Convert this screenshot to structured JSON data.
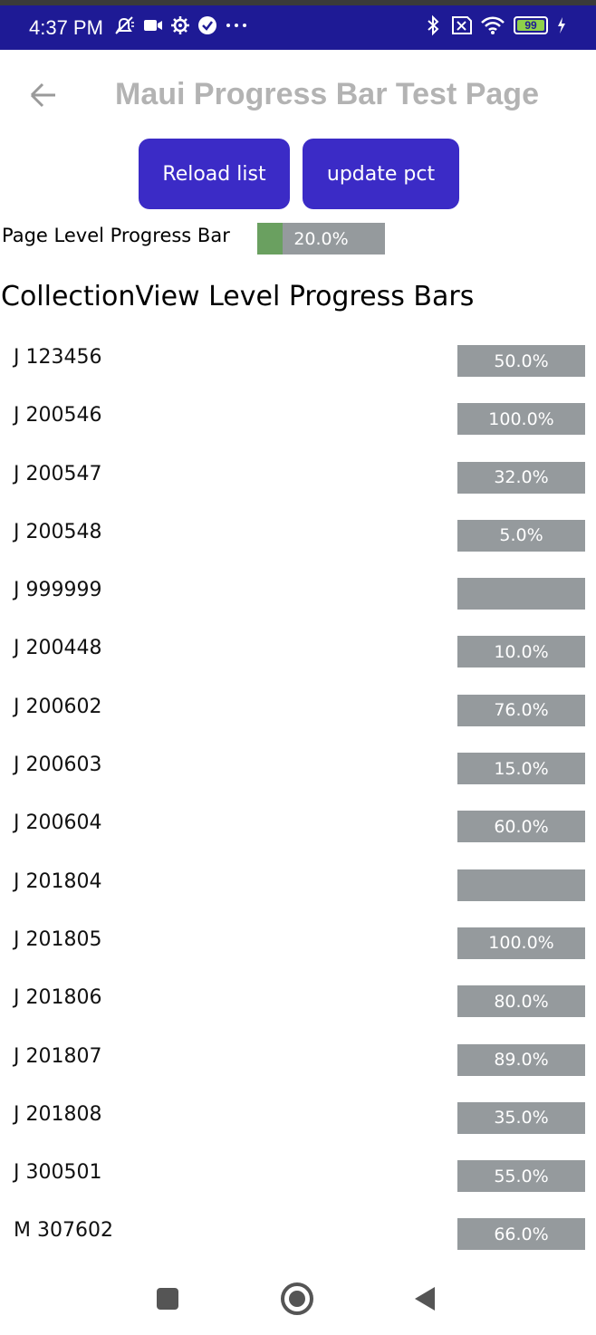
{
  "status_bar": {
    "time": "4:37 PM",
    "battery": "99",
    "icons_left": [
      "muted-notification-icon",
      "video-camera-icon",
      "settings-gear-icon",
      "check-circle-icon",
      "more-dots-icon"
    ],
    "icons_right": [
      "bluetooth-icon",
      "no-sim-icon",
      "wifi-icon",
      "battery-icon",
      "charging-bolt-icon"
    ]
  },
  "app_bar": {
    "title": "Maui Progress Bar Test Page"
  },
  "buttons": {
    "reload_label": "Reload list",
    "update_label": "update pct"
  },
  "page_progress": {
    "label": "Page Level Progress Bar",
    "value": 0.2,
    "text": "20.0%"
  },
  "section": {
    "title": "CollectionView Level Progress Bars"
  },
  "items": [
    {
      "label": "J 123456",
      "text": "50.0%"
    },
    {
      "label": "J 200546",
      "text": "100.0%"
    },
    {
      "label": "J 200547",
      "text": "32.0%"
    },
    {
      "label": "J 200548",
      "text": "5.0%"
    },
    {
      "label": "J 999999",
      "text": ""
    },
    {
      "label": "J 200448",
      "text": "10.0%"
    },
    {
      "label": "J 200602",
      "text": "76.0%"
    },
    {
      "label": "J 200603",
      "text": "15.0%"
    },
    {
      "label": "J 200604",
      "text": "60.0%"
    },
    {
      "label": "J 201804",
      "text": ""
    },
    {
      "label": "J 201805",
      "text": "100.0%"
    },
    {
      "label": "J 201806",
      "text": "80.0%"
    },
    {
      "label": "J 201807",
      "text": "89.0%"
    },
    {
      "label": "J 201808",
      "text": "35.0%"
    },
    {
      "label": "J 300501",
      "text": "55.0%"
    },
    {
      "label": "M 307602",
      "text": "66.0%"
    }
  ],
  "colors": {
    "status_bar": "#1e1a95",
    "button": "#3b2bc6",
    "progress_track": "#959a9d",
    "progress_fill": "#6aa060",
    "title_text": "#b3b3b3"
  },
  "nav_bar": {
    "icons": [
      "recents-square-icon",
      "home-circle-icon",
      "back-triangle-icon"
    ]
  }
}
